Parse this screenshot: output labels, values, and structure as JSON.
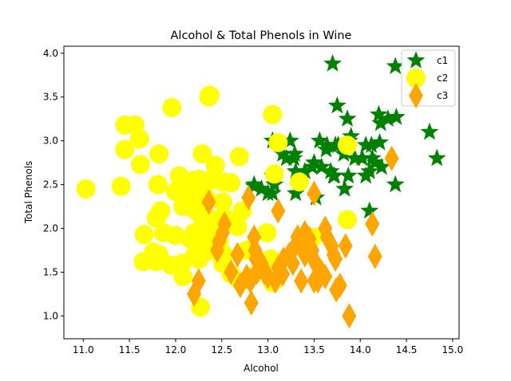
{
  "chart_data": {
    "type": "scatter",
    "title": "Alcohol & Total Phenols in Wine",
    "xlabel": "Alcohol",
    "ylabel": "Total Phenols",
    "xlim": [
      10.79,
      15.07
    ],
    "ylim": [
      0.74,
      4.08
    ],
    "xticks": [
      "11.0",
      "11.5",
      "12.0",
      "12.5",
      "13.0",
      "13.5",
      "14.0",
      "14.5",
      "15.0"
    ],
    "yticks": [
      "1.0",
      "1.5",
      "2.0",
      "2.5",
      "3.0",
      "3.5",
      "4.0"
    ],
    "grid": false,
    "legend_position": "top-right",
    "series": [
      {
        "name": "c1",
        "marker": "star",
        "color": "#008000",
        "points": [
          [
            13.7,
            3.88
          ],
          [
            14.38,
            3.85
          ],
          [
            14.75,
            3.1
          ],
          [
            14.83,
            2.8
          ],
          [
            14.1,
            2.2
          ],
          [
            13.75,
            3.4
          ],
          [
            13.86,
            3.25
          ],
          [
            14.2,
            3.3
          ],
          [
            14.3,
            3.25
          ],
          [
            14.39,
            3.27
          ],
          [
            14.22,
            3.2
          ],
          [
            13.24,
            3.0
          ],
          [
            13.76,
            2.95
          ],
          [
            13.64,
            2.95
          ],
          [
            13.88,
            3.0
          ],
          [
            13.9,
            3.05
          ],
          [
            13.73,
            2.95
          ],
          [
            14.06,
            2.95
          ],
          [
            14.12,
            2.95
          ],
          [
            14.21,
            2.98
          ],
          [
            13.05,
            3.0
          ],
          [
            13.56,
            3.0
          ],
          [
            13.63,
            2.9
          ],
          [
            13.16,
            2.85
          ],
          [
            13.29,
            2.85
          ],
          [
            13.82,
            2.85
          ],
          [
            13.94,
            2.8
          ],
          [
            14.02,
            2.8
          ],
          [
            14.13,
            2.8
          ],
          [
            14.16,
            2.75
          ],
          [
            13.2,
            2.8
          ],
          [
            13.28,
            2.8
          ],
          [
            13.5,
            2.75
          ],
          [
            13.48,
            2.7
          ],
          [
            13.58,
            2.7
          ],
          [
            13.68,
            2.65
          ],
          [
            13.71,
            2.6
          ],
          [
            14.06,
            2.6
          ],
          [
            14.1,
            2.65
          ],
          [
            14.23,
            2.7
          ],
          [
            13.3,
            2.65
          ],
          [
            13.72,
            2.6
          ],
          [
            13.05,
            2.6
          ],
          [
            13.07,
            2.5
          ],
          [
            12.93,
            2.45
          ],
          [
            12.85,
            2.48
          ],
          [
            13.0,
            2.4
          ],
          [
            13.05,
            2.4
          ],
          [
            13.3,
            2.4
          ],
          [
            13.52,
            2.35
          ],
          [
            13.83,
            2.45
          ],
          [
            14.38,
            2.5
          ],
          [
            13.4,
            2.65
          ],
          [
            12.85,
            2.5
          ],
          [
            13.87,
            2.6
          ]
        ]
      },
      {
        "name": "c2",
        "marker": "circle",
        "color": "#ffff00",
        "points": [
          [
            11.03,
            2.45
          ],
          [
            11.41,
            2.48
          ],
          [
            11.45,
            3.18
          ],
          [
            11.56,
            3.18
          ],
          [
            11.61,
            3.02
          ],
          [
            11.62,
            2.73
          ],
          [
            11.45,
            2.9
          ],
          [
            11.82,
            2.85
          ],
          [
            11.96,
            3.38
          ],
          [
            12.37,
            3.52
          ],
          [
            12.36,
            3.5
          ],
          [
            12.29,
            2.85
          ],
          [
            12.69,
            2.82
          ],
          [
            12.43,
            2.72
          ],
          [
            12.04,
            2.6
          ],
          [
            12.25,
            2.56
          ],
          [
            12.2,
            2.55
          ],
          [
            12.37,
            2.55
          ],
          [
            12.51,
            2.53
          ],
          [
            12.6,
            2.52
          ],
          [
            11.81,
            2.5
          ],
          [
            12.08,
            2.4
          ],
          [
            12.22,
            2.4
          ],
          [
            12.0,
            2.42
          ],
          [
            12.33,
            2.35
          ],
          [
            12.51,
            2.3
          ],
          [
            12.08,
            2.25
          ],
          [
            12.22,
            2.2
          ],
          [
            12.29,
            2.13
          ],
          [
            12.52,
            2.12
          ],
          [
            12.72,
            2.2
          ],
          [
            11.84,
            2.2
          ],
          [
            11.79,
            2.12
          ],
          [
            12.42,
            2.1
          ],
          [
            12.37,
            2.05
          ],
          [
            12.64,
            2.1
          ],
          [
            13.86,
            2.1
          ],
          [
            12.43,
            2.0
          ],
          [
            12.27,
            1.98
          ],
          [
            12.2,
            1.95
          ],
          [
            11.87,
            1.95
          ],
          [
            11.66,
            1.93
          ],
          [
            12.0,
            1.92
          ],
          [
            12.16,
            1.88
          ],
          [
            12.33,
            1.85
          ],
          [
            12.47,
            1.85
          ],
          [
            12.67,
            2.02
          ],
          [
            12.37,
            1.8
          ],
          [
            12.42,
            1.75
          ],
          [
            12.29,
            1.7
          ],
          [
            12.21,
            1.7
          ],
          [
            12.52,
            1.7
          ],
          [
            11.76,
            1.73
          ],
          [
            11.82,
            1.7
          ],
          [
            11.65,
            1.62
          ],
          [
            11.79,
            1.62
          ],
          [
            12.07,
            1.6
          ],
          [
            11.95,
            1.58
          ],
          [
            12.51,
            1.6
          ],
          [
            12.99,
            1.95
          ],
          [
            13.03,
            1.65
          ],
          [
            12.08,
            1.45
          ],
          [
            12.7,
            1.4
          ],
          [
            12.82,
            1.45
          ],
          [
            13.05,
            1.38
          ],
          [
            13.49,
            1.9
          ],
          [
            12.77,
            1.75
          ],
          [
            12.27,
            1.1
          ],
          [
            12.25,
            1.65
          ],
          [
            12.6,
            1.48
          ],
          [
            13.07,
            2.62
          ],
          [
            13.05,
            3.3
          ],
          [
            13.11,
            2.98
          ],
          [
            13.86,
            2.95
          ],
          [
            13.34,
            2.53
          ]
        ]
      },
      {
        "name": "c3",
        "marker": "diamond",
        "color": "#ffa500",
        "points": [
          [
            12.36,
            2.3
          ],
          [
            12.53,
            2.05
          ],
          [
            12.51,
            1.95
          ],
          [
            12.47,
            1.85
          ],
          [
            12.45,
            1.75
          ],
          [
            12.67,
            1.7
          ],
          [
            12.6,
            1.5
          ],
          [
            12.79,
            2.35
          ],
          [
            12.86,
            1.75
          ],
          [
            12.87,
            1.65
          ],
          [
            12.88,
            1.5
          ],
          [
            12.81,
            1.4
          ],
          [
            12.82,
            1.15
          ],
          [
            12.77,
            1.45
          ],
          [
            12.7,
            1.35
          ],
          [
            12.2,
            1.25
          ],
          [
            12.25,
            1.4
          ],
          [
            12.93,
            1.6
          ],
          [
            12.96,
            1.5
          ],
          [
            13.0,
            1.45
          ],
          [
            13.08,
            1.4
          ],
          [
            13.11,
            1.55
          ],
          [
            13.16,
            1.48
          ],
          [
            13.17,
            1.65
          ],
          [
            13.23,
            1.7
          ],
          [
            13.27,
            1.75
          ],
          [
            13.32,
            1.9
          ],
          [
            13.36,
            1.85
          ],
          [
            13.4,
            1.95
          ],
          [
            13.45,
            1.88
          ],
          [
            13.48,
            1.75
          ],
          [
            13.49,
            1.65
          ],
          [
            13.52,
            1.6
          ],
          [
            13.58,
            1.5
          ],
          [
            13.62,
            1.45
          ],
          [
            13.36,
            1.4
          ],
          [
            13.5,
            1.4
          ],
          [
            13.54,
            1.4
          ],
          [
            13.62,
            2.0
          ],
          [
            13.64,
            1.9
          ],
          [
            13.69,
            1.8
          ],
          [
            13.71,
            1.7
          ],
          [
            13.73,
            1.65
          ],
          [
            13.74,
            1.3
          ],
          [
            13.78,
            1.35
          ],
          [
            13.84,
            1.8
          ],
          [
            13.88,
            1.0
          ],
          [
            14.13,
            2.05
          ],
          [
            14.16,
            1.68
          ],
          [
            14.34,
            2.8
          ],
          [
            13.5,
            2.4
          ],
          [
            13.11,
            2.2
          ],
          [
            13.27,
            1.6
          ],
          [
            13.4,
            1.7
          ],
          [
            12.85,
            1.9
          ]
        ]
      }
    ]
  }
}
